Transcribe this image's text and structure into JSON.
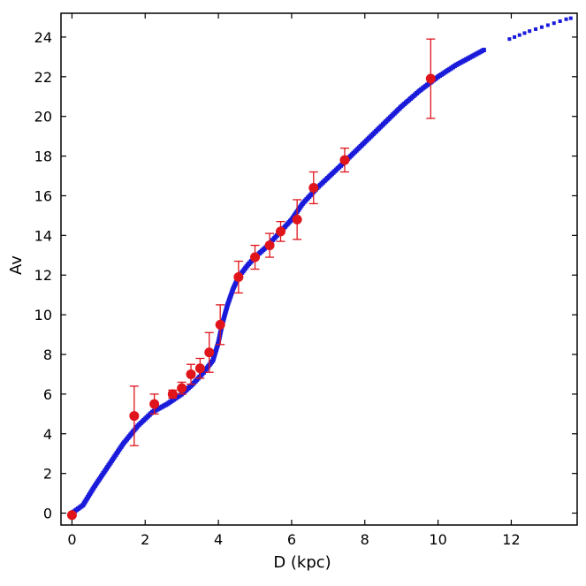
{
  "chart_data": {
    "type": "scatter",
    "title": "",
    "xlabel": "D (kpc)",
    "ylabel": "Av",
    "xlim": [
      -0.3,
      13.8
    ],
    "ylim": [
      -0.6,
      25.2
    ],
    "xticks": [
      0,
      2,
      4,
      6,
      8,
      10,
      12
    ],
    "yticks": [
      0,
      2,
      4,
      6,
      8,
      10,
      12,
      14,
      16,
      18,
      20,
      22,
      24
    ],
    "grid": false,
    "legend": "none",
    "series": [
      {
        "kind": "model-curve",
        "color": "#1a1adb",
        "marker": "square",
        "points": [
          [
            0.0,
            0.0
          ],
          [
            0.3,
            0.4
          ],
          [
            0.6,
            1.3
          ],
          [
            1.0,
            2.4
          ],
          [
            1.4,
            3.5
          ],
          [
            1.8,
            4.4
          ],
          [
            2.2,
            5.1
          ],
          [
            2.6,
            5.5
          ],
          [
            3.0,
            6.0
          ],
          [
            3.3,
            6.5
          ],
          [
            3.6,
            7.1
          ],
          [
            3.85,
            7.7
          ],
          [
            4.0,
            8.6
          ],
          [
            4.1,
            9.5
          ],
          [
            4.25,
            10.5
          ],
          [
            4.4,
            11.3
          ],
          [
            4.55,
            11.9
          ],
          [
            4.8,
            12.5
          ],
          [
            5.0,
            12.9
          ],
          [
            5.3,
            13.4
          ],
          [
            5.6,
            14.0
          ],
          [
            6.0,
            14.8
          ],
          [
            6.3,
            15.6
          ],
          [
            6.7,
            16.4
          ],
          [
            7.1,
            17.1
          ],
          [
            7.5,
            17.8
          ],
          [
            8.0,
            18.7
          ],
          [
            8.5,
            19.6
          ],
          [
            9.0,
            20.5
          ],
          [
            9.5,
            21.3
          ],
          [
            10.0,
            22.0
          ],
          [
            10.5,
            22.6
          ],
          [
            11.0,
            23.1
          ],
          [
            11.3,
            23.4
          ],
          [
            11.95,
            23.9
          ],
          [
            12.5,
            24.3
          ],
          [
            13.0,
            24.6
          ],
          [
            13.5,
            24.9
          ],
          [
            13.75,
            25.0
          ]
        ]
      },
      {
        "kind": "observations",
        "color": "#e0141b",
        "marker": "circle",
        "points": [
          {
            "x": 0.0,
            "y": -0.1,
            "err": 0
          },
          {
            "x": 1.7,
            "y": 4.9,
            "err": 1.5
          },
          {
            "x": 2.25,
            "y": 5.5,
            "err": 0.5
          },
          {
            "x": 2.75,
            "y": 6.0,
            "err": 0.2
          },
          {
            "x": 3.0,
            "y": 6.3,
            "err": 0.3
          },
          {
            "x": 3.25,
            "y": 7.0,
            "err": 0.5
          },
          {
            "x": 3.5,
            "y": 7.3,
            "err": 0.5
          },
          {
            "x": 3.75,
            "y": 8.1,
            "err": 1.0
          },
          {
            "x": 4.05,
            "y": 9.5,
            "err": 1.0
          },
          {
            "x": 4.55,
            "y": 11.9,
            "err": 0.8
          },
          {
            "x": 5.0,
            "y": 12.9,
            "err": 0.6
          },
          {
            "x": 5.4,
            "y": 13.5,
            "err": 0.6
          },
          {
            "x": 5.7,
            "y": 14.2,
            "err": 0.5
          },
          {
            "x": 6.15,
            "y": 14.8,
            "err": 1.0
          },
          {
            "x": 6.6,
            "y": 16.4,
            "err": 0.8
          },
          {
            "x": 7.45,
            "y": 17.8,
            "err": 0.6
          },
          {
            "x": 9.8,
            "y": 21.9,
            "err": 2.0
          }
        ]
      }
    ]
  }
}
